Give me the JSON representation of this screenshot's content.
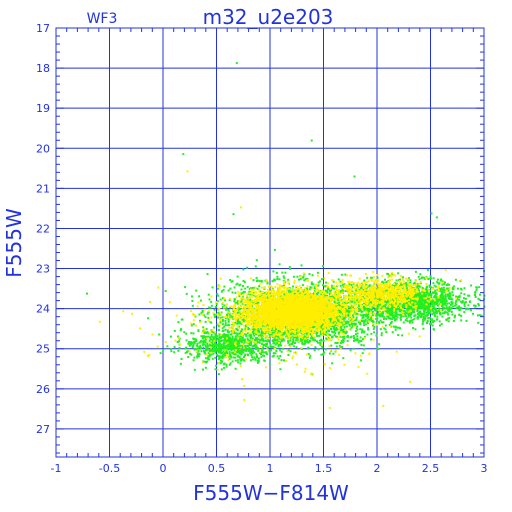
{
  "chart_data": {
    "type": "scatter",
    "title": "m32_u2e203",
    "subtitle": "WF3",
    "xlabel": "F555W−F814W",
    "ylabel": "F555W",
    "xlim": [
      -1,
      3
    ],
    "ylim": [
      27.7,
      17
    ],
    "y_inverted": true,
    "grid": true,
    "x_ticks": [
      -1,
      -0.5,
      0,
      0.5,
      1,
      1.5,
      2,
      2.5,
      3
    ],
    "y_ticks": [
      17,
      18,
      19,
      20,
      21,
      22,
      23,
      24,
      25,
      26,
      27
    ],
    "series_colors": [
      "#22ee22",
      "#ffee00"
    ],
    "clouds": [
      {
        "color_index": 0,
        "count": 2600,
        "cx": 1.25,
        "cy": 24.15,
        "sx": 0.62,
        "sy": 0.68
      },
      {
        "color_index": 0,
        "count": 1500,
        "cx": 2.3,
        "cy": 23.8,
        "sx": 0.45,
        "sy": 0.42
      },
      {
        "color_index": 0,
        "count": 700,
        "cx": 0.6,
        "cy": 24.9,
        "sx": 0.35,
        "sy": 0.35
      },
      {
        "color_index": 1,
        "count": 3200,
        "cx": 1.2,
        "cy": 24.05,
        "sx": 0.38,
        "sy": 0.42
      },
      {
        "color_index": 1,
        "count": 700,
        "cx": 2.05,
        "cy": 23.6,
        "sx": 0.38,
        "sy": 0.32
      },
      {
        "color_index": 1,
        "count": 250,
        "cx": 1.0,
        "cy": 24.4,
        "sx": 0.9,
        "sy": 0.9
      }
    ],
    "outliers": [
      {
        "x": 0.68,
        "y": 17.85,
        "color_index": 0
      },
      {
        "x": 1.38,
        "y": 19.78,
        "color_index": 0
      },
      {
        "x": 0.18,
        "y": 20.12,
        "color_index": 0
      },
      {
        "x": 0.22,
        "y": 20.55,
        "color_index": 1
      },
      {
        "x": 1.78,
        "y": 20.68,
        "color_index": 0
      },
      {
        "x": 0.65,
        "y": 21.62,
        "color_index": 0
      },
      {
        "x": 0.72,
        "y": 21.45,
        "color_index": 1
      },
      {
        "x": 2.5,
        "y": 21.6,
        "color_index": 0
      },
      {
        "x": 2.55,
        "y": 21.7,
        "color_index": 0
      },
      {
        "x": -0.72,
        "y": 23.6,
        "color_index": 0
      },
      {
        "x": -0.6,
        "y": 24.3,
        "color_index": 1
      },
      {
        "x": -0.3,
        "y": 24.1,
        "color_index": 1
      },
      {
        "x": 0.75,
        "y": 25.9,
        "color_index": 1
      },
      {
        "x": 0.75,
        "y": 26.25,
        "color_index": 1
      },
      {
        "x": 2.3,
        "y": 25.8,
        "color_index": 1
      },
      {
        "x": 2.05,
        "y": 26.4,
        "color_index": 1
      },
      {
        "x": 1.55,
        "y": 26.45,
        "color_index": 1
      },
      {
        "x": 1.9,
        "y": 25.6,
        "color_index": 1
      }
    ]
  }
}
